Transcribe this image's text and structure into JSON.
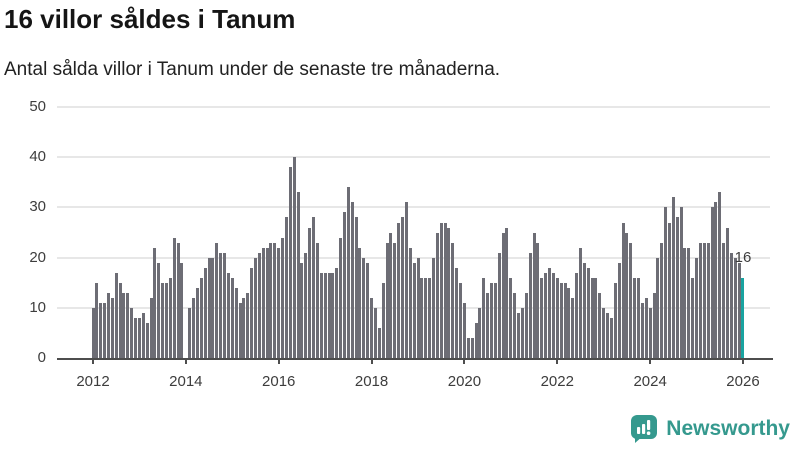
{
  "header": {
    "title": "16 villor såldes i Tanum",
    "subtitle": "Antal sålda villor i Tanum under de senaste tre månaderna."
  },
  "annotation": {
    "last_value_label": "16"
  },
  "branding": {
    "name": "Newsworthy",
    "icon": "newsworthy-chart-bubble-icon"
  },
  "colors": {
    "bar": "#6d6d75",
    "highlight": "#19a3a0",
    "axis": "#4d4d4d",
    "grid": "#e7e7e7",
    "tick_text": "#3d3d3d",
    "brand": "#35998e",
    "title_text": "#151515",
    "subtitle_text": "#222222"
  },
  "chart_data": {
    "type": "bar",
    "title": "16 villor såldes i Tanum",
    "subtitle": "Antal sålda villor i Tanum under de senaste tre månaderna.",
    "xlabel": "",
    "ylabel": "",
    "x_start_month": "2012-01",
    "x_end_month": "2026-01",
    "x_frequency": "monthly",
    "ylim": [
      0,
      50
    ],
    "yticks": [
      0,
      10,
      20,
      30,
      40,
      50
    ],
    "xticks": [
      "2012",
      "2014",
      "2016",
      "2018",
      "2020",
      "2022",
      "2024",
      "2026"
    ],
    "grid": "horizontal",
    "legend": "none",
    "highlight_last_bar": true,
    "last_value": 16,
    "values": [
      10,
      15,
      11,
      11,
      13,
      12,
      17,
      15,
      13,
      13,
      10,
      8,
      8,
      9,
      7,
      12,
      22,
      19,
      15,
      15,
      16,
      24,
      23,
      19,
      0,
      10,
      12,
      14,
      16,
      18,
      20,
      20,
      23,
      21,
      21,
      17,
      16,
      14,
      11,
      12,
      13,
      18,
      20,
      21,
      22,
      22,
      23,
      23,
      22,
      24,
      28,
      38,
      40,
      33,
      19,
      21,
      26,
      28,
      23,
      17,
      17,
      17,
      17,
      18,
      24,
      29,
      34,
      31,
      28,
      22,
      20,
      19,
      12,
      10,
      6,
      15,
      23,
      25,
      23,
      27,
      28,
      31,
      22,
      19,
      20,
      16,
      16,
      16,
      20,
      25,
      27,
      27,
      26,
      23,
      18,
      15,
      11,
      4,
      4,
      7,
      10,
      16,
      13,
      15,
      15,
      21,
      25,
      26,
      16,
      13,
      9,
      10,
      13,
      21,
      25,
      23,
      16,
      17,
      18,
      17,
      16,
      15,
      15,
      14,
      12,
      17,
      22,
      19,
      18,
      16,
      16,
      13,
      10,
      9,
      8,
      15,
      19,
      27,
      25,
      23,
      16,
      16,
      11,
      12,
      10,
      13,
      20,
      23,
      30,
      27,
      32,
      28,
      30,
      22,
      22,
      16,
      20,
      23,
      23,
      23,
      30,
      31,
      33,
      23,
      26,
      21,
      20,
      19,
      16
    ]
  }
}
